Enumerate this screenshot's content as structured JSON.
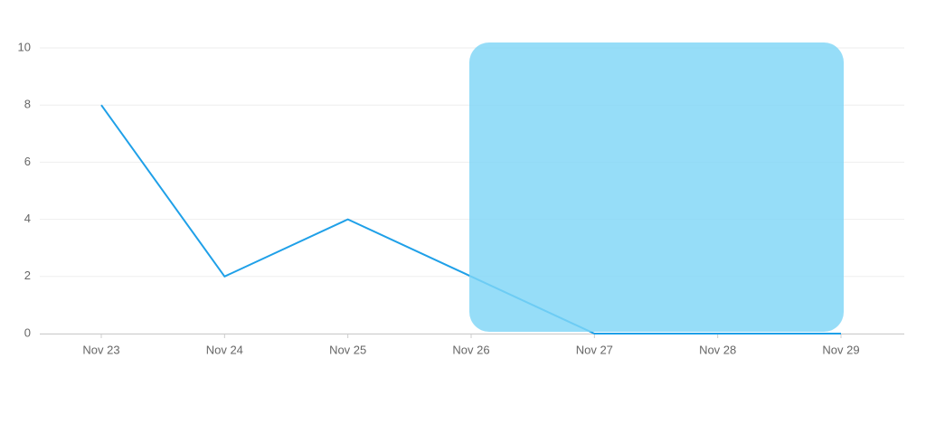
{
  "chart_data": {
    "type": "line",
    "categories": [
      "Nov 23",
      "Nov 24",
      "Nov 25",
      "Nov 26",
      "Nov 27",
      "Nov 28",
      "Nov 29"
    ],
    "series": [
      {
        "name": null,
        "color": "#1fa0e8",
        "values": [
          8,
          2,
          4,
          2,
          0,
          0,
          0
        ]
      }
    ],
    "ylim": [
      0,
      10
    ],
    "yticks": [
      0,
      2,
      4,
      6,
      8,
      10
    ],
    "grid": true
  }
}
